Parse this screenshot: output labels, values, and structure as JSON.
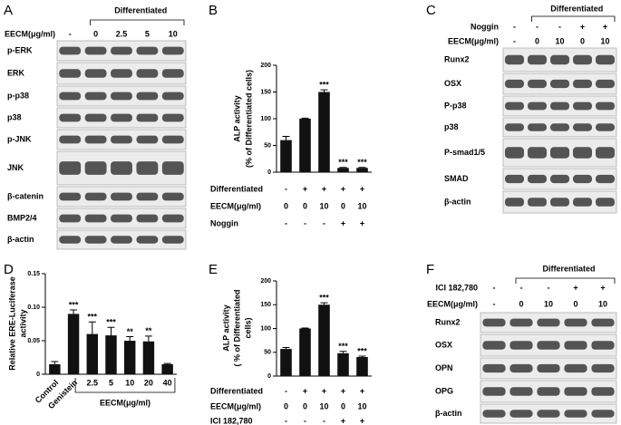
{
  "chart_data": [
    {
      "panel": "B",
      "type": "bar",
      "ylabel": [
        "ALP activity",
        "(% of Differentiated cells)"
      ],
      "values": [
        60,
        100,
        150,
        8,
        8
      ],
      "errors": [
        7,
        1,
        4,
        1,
        1
      ],
      "significance": [
        null,
        null,
        "***",
        "***",
        "***"
      ],
      "color": "#111111",
      "ylim": [
        0,
        200
      ],
      "yticks": [
        0,
        50,
        100,
        150,
        200
      ],
      "table": [
        {
          "label": "Differentiated",
          "cells": [
            "-",
            "+",
            "+",
            "+",
            "+"
          ]
        },
        {
          "label": "EECM(μg/ml)",
          "cells": [
            "0",
            "0",
            "10",
            "0",
            "10"
          ]
        },
        {
          "label": "Noggin",
          "cells": [
            "-",
            "-",
            "-",
            "+",
            "+"
          ]
        }
      ]
    },
    {
      "panel": "D",
      "type": "bar",
      "ylabel": [
        "Relative ERE-Luciferase",
        "activity"
      ],
      "categories": [
        "Control",
        "Genistein",
        "2.5",
        "5",
        "10",
        "20",
        "40"
      ],
      "values": [
        0.015,
        0.09,
        0.06,
        0.058,
        0.05,
        0.049,
        0.015
      ],
      "errors": [
        0.004,
        0.006,
        0.018,
        0.012,
        0.006,
        0.008,
        0.001
      ],
      "significance": [
        null,
        "***",
        "***",
        "***",
        "**",
        "**",
        null
      ],
      "xlabel": "EECM(μg/ml)",
      "color": "#111111",
      "ylim": [
        0,
        0.15
      ],
      "yticks": [
        0,
        0.05,
        {
          "value": 0.1,
          "label": "0.10"
        },
        0.15
      ]
    },
    {
      "panel": "E",
      "type": "bar",
      "ylabel": [
        "ALP activity",
        "( % of Differentiated",
        "cells)"
      ],
      "values": [
        57,
        100,
        150,
        48,
        40
      ],
      "errors": [
        3,
        1,
        4,
        4,
        2
      ],
      "significance": [
        null,
        null,
        "***",
        "***",
        "***"
      ],
      "color": "#111111",
      "ylim": [
        0,
        200
      ],
      "yticks": [
        0,
        50,
        100,
        150,
        200
      ],
      "table": [
        {
          "label": "Differentiated",
          "cells": [
            "-",
            "+",
            "+",
            "+",
            "+"
          ]
        },
        {
          "label": "EECM(μg/ml)",
          "cells": [
            "0",
            "0",
            "10",
            "0",
            "10"
          ]
        },
        {
          "label": "ICI 182,780",
          "cells": [
            "-",
            "-",
            "-",
            "+",
            "+"
          ]
        }
      ]
    }
  ],
  "blots": [
    {
      "panel": "A",
      "header": "Differentiated",
      "treatments": [
        {
          "label": "EECM(μg/ml)",
          "lanes": [
            "-",
            "0",
            "2.5",
            "5",
            "10"
          ]
        }
      ],
      "rows": [
        "p-ERK",
        "ERK",
        "p-p38",
        "p38",
        "p-JNK",
        "JNK",
        "β-catenin",
        "BMP2/4",
        "β-actin"
      ]
    },
    {
      "panel": "C",
      "header": "Differentiated",
      "treatments": [
        {
          "label": "Noggin",
          "lanes": [
            "-",
            "-",
            "-",
            "+",
            "+"
          ]
        },
        {
          "label": "EECM(μg/ml)",
          "lanes": [
            "-",
            "0",
            "10",
            "0",
            "10"
          ]
        }
      ],
      "rows": [
        "Runx2",
        "OSX",
        "P-p38",
        "p38",
        "P-smad1/5",
        "SMAD",
        "β-actin"
      ]
    },
    {
      "panel": "F",
      "header": "Differentiated",
      "treatments": [
        {
          "label": "ICI 182,780",
          "lanes": [
            "-",
            "-",
            "-",
            "+",
            "+"
          ]
        },
        {
          "label": "EECM(μg/ml)",
          "lanes": [
            "-",
            "0",
            "10",
            "0",
            "10"
          ]
        }
      ],
      "rows": [
        "Runx2",
        "OSX",
        "OPN",
        "OPG",
        "β-actin"
      ]
    }
  ]
}
